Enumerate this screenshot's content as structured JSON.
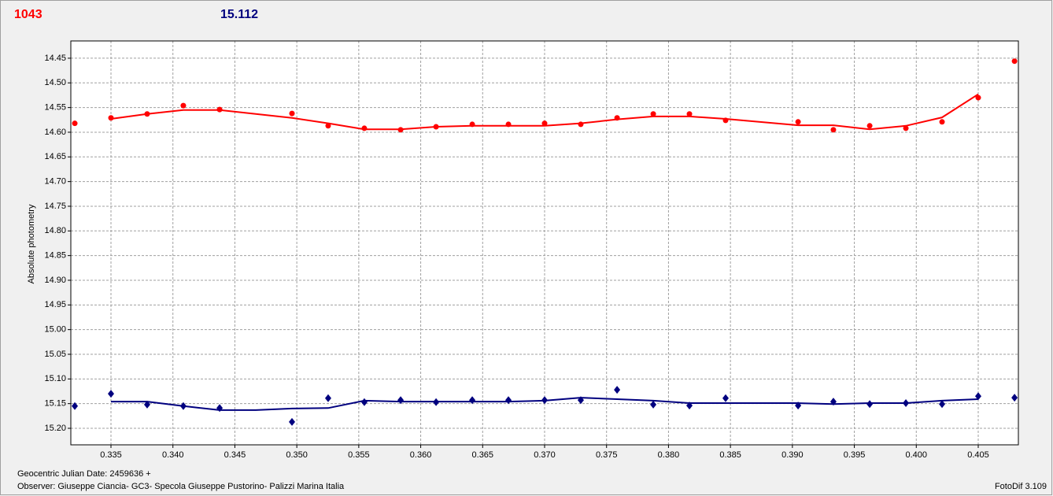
{
  "chart_data": {
    "type": "scatter",
    "title": "1043",
    "title_color": "#ff0000",
    "subtitle": "15.112",
    "subtitle_color": "#00007f",
    "ylabel": "Absolute photometry",
    "xlabel": "Geocentric Julian Date: 2459636 +",
    "annotations": [
      "Observer: Giuseppe Ciancia- GC3- Specola Giuseppe Pustorino- Palizzi Marina Italia",
      "FotoDif 3.109"
    ],
    "xlim": [
      0.33176,
      0.40824
    ],
    "ylim": [
      14.415,
      15.2335
    ],
    "invert_y": true,
    "grid": true,
    "xticks": [
      0.335,
      {
        "value": 0.34,
        "label": "0.340"
      },
      0.345,
      {
        "value": 0.35,
        "label": "0.350"
      },
      0.355,
      {
        "value": 0.36,
        "label": "0.360"
      },
      0.365,
      {
        "value": 0.37,
        "label": "0.370"
      },
      0.375,
      {
        "value": 0.38,
        "label": "0.380"
      },
      0.385,
      {
        "value": 0.39,
        "label": "0.390"
      },
      0.395,
      {
        "value": 0.4,
        "label": "0.400"
      },
      0.405
    ],
    "yticks": [
      14.45,
      {
        "value": 14.5,
        "label": "14.50"
      },
      14.55,
      {
        "value": 14.6,
        "label": "14.60"
      },
      14.65,
      {
        "value": 14.7,
        "label": "14.70"
      },
      14.75,
      {
        "value": 14.8,
        "label": "14.80"
      },
      14.85,
      {
        "value": 14.9,
        "label": "14.90"
      },
      14.95,
      {
        "value": 15.0,
        "label": "15.00"
      },
      15.05,
      {
        "value": 15.1,
        "label": "15.10"
      },
      15.15,
      {
        "value": 15.2,
        "label": "15.20"
      }
    ],
    "series": [
      {
        "type": "line",
        "color": "#ff0000",
        "x": [
          0.335,
          0.33792,
          0.34084,
          0.34377,
          0.34961,
          0.35253,
          0.35545,
          0.35838,
          0.36124,
          0.36416,
          0.36708,
          0.37,
          0.37292,
          0.37585,
          0.37877,
          0.38169,
          0.38461,
          0.39046,
          0.39331,
          0.39624,
          0.39916,
          0.40208,
          0.405
        ],
        "values": [
          14.573,
          14.563,
          14.555,
          14.555,
          14.571,
          14.582,
          14.594,
          14.594,
          14.589,
          14.587,
          14.587,
          14.587,
          14.582,
          14.574,
          14.568,
          14.568,
          14.573,
          14.586,
          14.586,
          14.594,
          14.587,
          14.57,
          14.523
        ]
      },
      {
        "type": "scatter",
        "marker": "circle",
        "color": "#ff0000",
        "x": [
          0.33208,
          0.335,
          0.33792,
          0.34084,
          0.34377,
          0.34961,
          0.35253,
          0.35545,
          0.35838,
          0.36124,
          0.36416,
          0.36708,
          0.37,
          0.37292,
          0.37585,
          0.37877,
          0.38169,
          0.38461,
          0.39046,
          0.39331,
          0.39624,
          0.39916,
          0.40208,
          0.405,
          0.40793
        ],
        "values": [
          14.582,
          14.571,
          14.563,
          14.546,
          14.554,
          14.562,
          14.587,
          14.592,
          14.595,
          14.589,
          14.584,
          14.584,
          14.582,
          14.584,
          14.571,
          14.563,
          14.563,
          14.576,
          14.579,
          14.595,
          14.587,
          14.592,
          14.579,
          14.53,
          14.456
        ]
      },
      {
        "type": "line",
        "color": "#00007f",
        "x": [
          0.335,
          0.33792,
          0.34084,
          0.34377,
          0.34669,
          0.34961,
          0.35253,
          0.35545,
          0.35838,
          0.36124,
          0.36416,
          0.36708,
          0.37,
          0.37292,
          0.37585,
          0.37877,
          0.38169,
          0.38461,
          0.39046,
          0.39331,
          0.39624,
          0.39916,
          0.40208,
          0.405
        ],
        "values": [
          15.146,
          15.146,
          15.155,
          15.163,
          15.163,
          15.16,
          15.159,
          15.144,
          15.146,
          15.146,
          15.146,
          15.146,
          15.144,
          15.138,
          15.141,
          15.144,
          15.149,
          15.149,
          15.149,
          15.151,
          15.149,
          15.149,
          15.144,
          15.141
        ]
      },
      {
        "type": "scatter",
        "marker": "diamond",
        "color": "#00007f",
        "x": [
          0.33208,
          0.335,
          0.33792,
          0.34084,
          0.34377,
          0.34961,
          0.35253,
          0.35545,
          0.35838,
          0.36124,
          0.36416,
          0.36708,
          0.37,
          0.37292,
          0.37585,
          0.37877,
          0.38169,
          0.38461,
          0.39046,
          0.39331,
          0.39624,
          0.39916,
          0.40208,
          0.405,
          0.40793
        ],
        "values": [
          15.155,
          15.13,
          15.152,
          15.155,
          15.159,
          15.187,
          15.139,
          15.147,
          15.143,
          15.147,
          15.143,
          15.143,
          15.143,
          15.143,
          15.122,
          15.152,
          15.154,
          15.139,
          15.154,
          15.146,
          15.151,
          15.149,
          15.151,
          15.135,
          15.138
        ]
      }
    ]
  }
}
